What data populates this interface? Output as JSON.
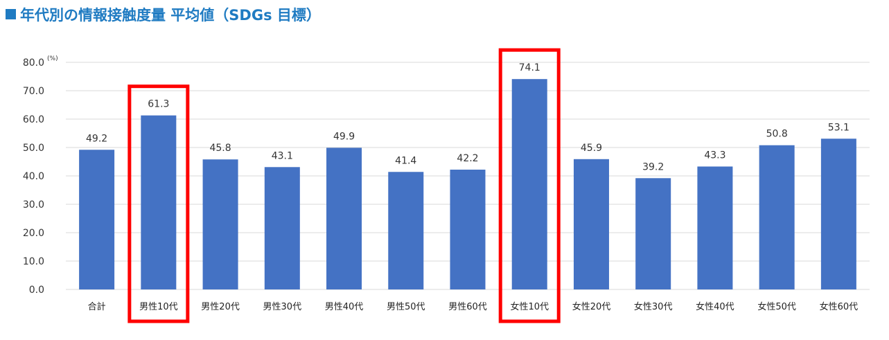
{
  "header": {
    "title": "年代別の情報接触度量 平均値（SDGs 目標）"
  },
  "colors": {
    "title": "#1f7bc2",
    "bar": "#4472c4",
    "highlight": "#ff0000",
    "grid": "#d9d9d9"
  },
  "chart_data": {
    "type": "bar",
    "title": "年代別の情報接触度量 平均値（SDGs 目標）",
    "unit_label": "(%)",
    "categories": [
      "合計",
      "男性10代",
      "男性20代",
      "男性30代",
      "男性40代",
      "男性50代",
      "男性60代",
      "女性10代",
      "女性20代",
      "女性30代",
      "女性40代",
      "女性50代",
      "女性60代"
    ],
    "values": [
      49.2,
      61.3,
      45.8,
      43.1,
      49.9,
      41.4,
      42.2,
      74.1,
      45.9,
      39.2,
      43.3,
      50.8,
      53.1
    ],
    "value_labels": [
      "49.2",
      "61.3",
      "45.8",
      "43.1",
      "49.9",
      "41.4",
      "42.2",
      "74.1",
      "45.9",
      "39.2",
      "43.3",
      "50.8",
      "53.1"
    ],
    "ylim": [
      0,
      80
    ],
    "yticks": [
      "0.0",
      "10.0",
      "20.0",
      "30.0",
      "40.0",
      "50.0",
      "60.0",
      "70.0",
      "80.0"
    ],
    "grid": true,
    "legend": "none",
    "highlighted": [
      "男性10代",
      "女性10代"
    ]
  }
}
